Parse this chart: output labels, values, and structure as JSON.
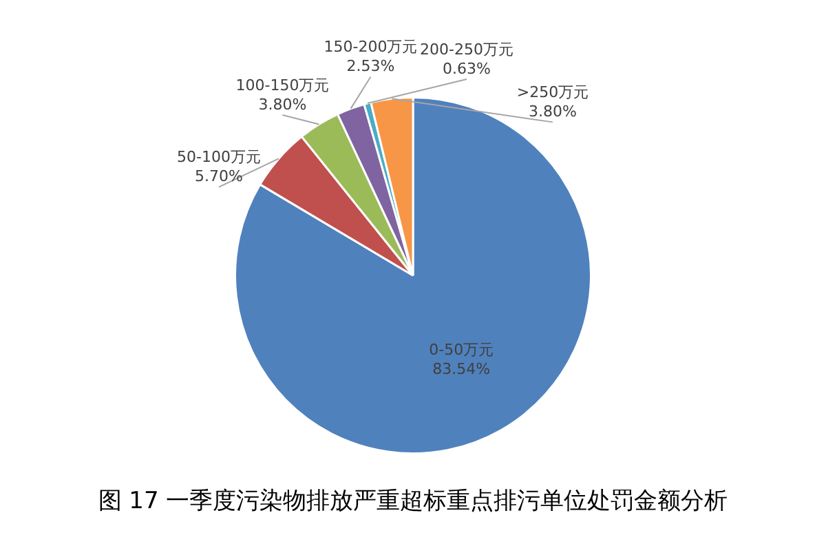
{
  "chart_data": {
    "type": "pie",
    "title": "图 17  一季度污染物排放严重超标重点排污单位处罚金额分析",
    "categories": [
      "0-50万元",
      "50-100万元",
      "100-150万元",
      "150-200万元",
      "200-250万元",
      ">250万元"
    ],
    "values": [
      83.54,
      5.7,
      3.8,
      2.53,
      0.63,
      3.8
    ],
    "colors": [
      "#4f81bd",
      "#c0504d",
      "#9bbb59",
      "#8064a2",
      "#4bacc6",
      "#f79646"
    ],
    "value_labels": [
      "83.54%",
      "5.70%",
      "3.80%",
      "2.53%",
      "0.63%",
      "3.80%"
    ],
    "legend": false
  }
}
